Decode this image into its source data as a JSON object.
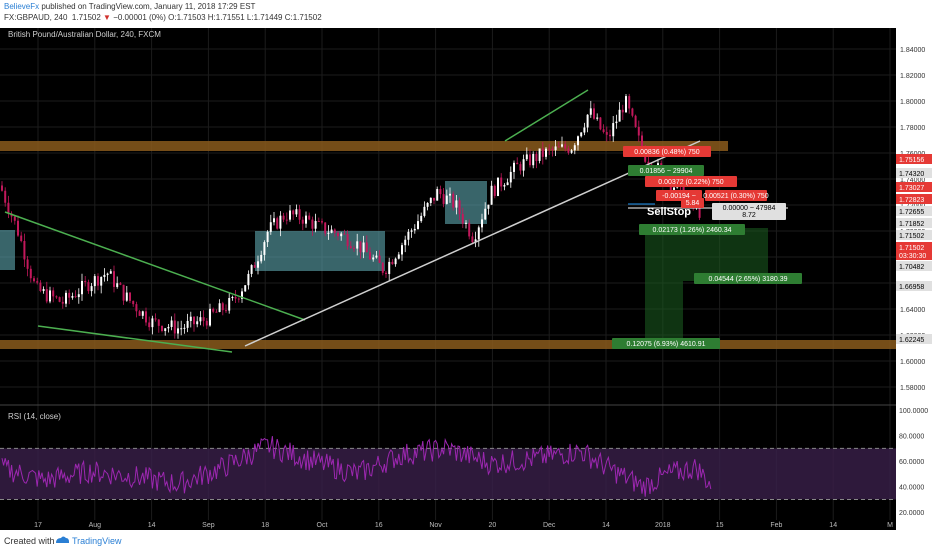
{
  "header": {
    "author": "BelieveFx",
    "published": " published on TradingView.com, January 11, 2018 17:29 EST",
    "symbol": "FX:GBPAUD, 240",
    "last_price": "1.71502",
    "change": "−0.00001 (0%)",
    "o_label": "O:",
    "o_value": "1.71503",
    "h_label": "H:",
    "h_value": "1.71551",
    "l_label": "L:",
    "l_value": "1.71449",
    "c_label": "C:",
    "c_value": "1.71502"
  },
  "legend": "British Pound/Australian Dollar, 240, FXCM",
  "rsi_label": "RSI (14, close)",
  "footer": {
    "created": "Created with",
    "brand": "TradingView"
  },
  "colors": {
    "background": "#000000",
    "candle_up": "#ffffff",
    "candle_down": "#c2185b",
    "zone": "#8a5a1c",
    "box": "#5fa8b0",
    "trendline_green": "#4caf50",
    "trendline_white": "#cfcfcf",
    "rsi": "#9c27b0",
    "label_red": "#e53935",
    "label_green": "#2e7d32"
  },
  "chart_data": {
    "type": "candlestick",
    "title": "British Pound/Australian Dollar, 240, FXCM",
    "price_axis": {
      "range": [
        1.57,
        1.85
      ],
      "ticks": [
        "1.84000",
        "1.82000",
        "1.80000",
        "1.78000",
        "1.76000",
        "1.74000",
        "1.72000",
        "1.70000",
        "1.68000",
        "1.66000",
        "1.64000",
        "1.62000",
        "1.60000",
        "1.58000"
      ]
    },
    "time_axis": {
      "ticks": [
        "17",
        "Aug",
        "14",
        "Sep",
        "18",
        "Oct",
        "16",
        "Nov",
        "20",
        "Dec",
        "14",
        "2018",
        "15",
        "Feb",
        "14",
        "M"
      ]
    },
    "price_labels": [
      {
        "text": "1.75156",
        "color": "#e53935"
      },
      {
        "text": "1.74320",
        "color": "#e0e0e0"
      },
      {
        "text": "1.73027",
        "color": "#e53935"
      },
      {
        "text": "1.72823",
        "color": "#e53935"
      },
      {
        "text": "1.72655",
        "color": "#e0e0e0"
      },
      {
        "text": "1.71852",
        "color": "#e0e0e0"
      },
      {
        "text": "1.71502",
        "color": "#e0e0e0"
      },
      {
        "text": "1.71502",
        "color": "#e53935"
      },
      {
        "text": "03:30:30",
        "color": "#e53935"
      },
      {
        "text": "1.70482",
        "color": "#e0e0e0"
      },
      {
        "text": "1.66958",
        "color": "#e0e0e0"
      },
      {
        "text": "1.62245",
        "color": "#e0e0e0"
      }
    ],
    "annotations": [
      {
        "text": "0.00836 (0.48%) 750",
        "color": "red"
      },
      {
        "text": "0.01856 ~ 29904",
        "color": "green"
      },
      {
        "text": "0.00372 (0.22%) 750",
        "color": "red"
      },
      {
        "text": "-0.00194 ~",
        "color": "red"
      },
      {
        "text": "5.84",
        "color": "red"
      },
      {
        "text": "0.00521 (0.30%) 750",
        "color": "red"
      },
      {
        "text": "SellStop",
        "color": "white"
      },
      {
        "text": "0.00000 ~ 47984",
        "color": "gray"
      },
      {
        "text": "8.72",
        "color": "gray"
      },
      {
        "text": "0.02173 (1.26%) 2460.34",
        "color": "green"
      },
      {
        "text": "0.04544 (2.65%) 3180.39",
        "color": "green"
      },
      {
        "text": "0.12075 (6.93%) 4610.91",
        "color": "green"
      }
    ],
    "price_path": [
      [
        0,
        1.735
      ],
      [
        0.02,
        1.7
      ],
      [
        0.04,
        1.655
      ],
      [
        0.07,
        1.645
      ],
      [
        0.1,
        1.66
      ],
      [
        0.12,
        1.668
      ],
      [
        0.14,
        1.65
      ],
      [
        0.17,
        1.63
      ],
      [
        0.2,
        1.625
      ],
      [
        0.23,
        1.632
      ],
      [
        0.26,
        1.645
      ],
      [
        0.28,
        1.666
      ],
      [
        0.3,
        1.7
      ],
      [
        0.32,
        1.713
      ],
      [
        0.34,
        1.71
      ],
      [
        0.36,
        1.702
      ],
      [
        0.38,
        1.698
      ],
      [
        0.4,
        1.69
      ],
      [
        0.43,
        1.67
      ],
      [
        0.46,
        1.7
      ],
      [
        0.49,
        1.73
      ],
      [
        0.51,
        1.72
      ],
      [
        0.53,
        1.695
      ],
      [
        0.55,
        1.73
      ],
      [
        0.58,
        1.75
      ],
      [
        0.61,
        1.76
      ],
      [
        0.64,
        1.765
      ],
      [
        0.66,
        1.792
      ],
      [
        0.68,
        1.77
      ],
      [
        0.7,
        1.8
      ],
      [
        0.72,
        1.76
      ],
      [
        0.74,
        1.745
      ],
      [
        0.77,
        1.725
      ],
      [
        0.79,
        1.71
      ],
      [
        0.8,
        1.715
      ]
    ],
    "rsi": {
      "label": "RSI (14, close)",
      "range": [
        10,
        100
      ],
      "ticks": [
        "100.0000",
        "80.0000",
        "60.0000",
        "40.0000",
        "20.0000"
      ],
      "overbought": 70,
      "oversold": 30,
      "path": [
        [
          0,
          55
        ],
        [
          0.05,
          45
        ],
        [
          0.1,
          52
        ],
        [
          0.15,
          48
        ],
        [
          0.2,
          42
        ],
        [
          0.25,
          55
        ],
        [
          0.3,
          72
        ],
        [
          0.35,
          60
        ],
        [
          0.4,
          50
        ],
        [
          0.45,
          65
        ],
        [
          0.5,
          70
        ],
        [
          0.55,
          58
        ],
        [
          0.6,
          62
        ],
        [
          0.65,
          68
        ],
        [
          0.68,
          55
        ],
        [
          0.72,
          40
        ],
        [
          0.75,
          50
        ],
        [
          0.78,
          55
        ],
        [
          0.8,
          38
        ]
      ]
    }
  }
}
